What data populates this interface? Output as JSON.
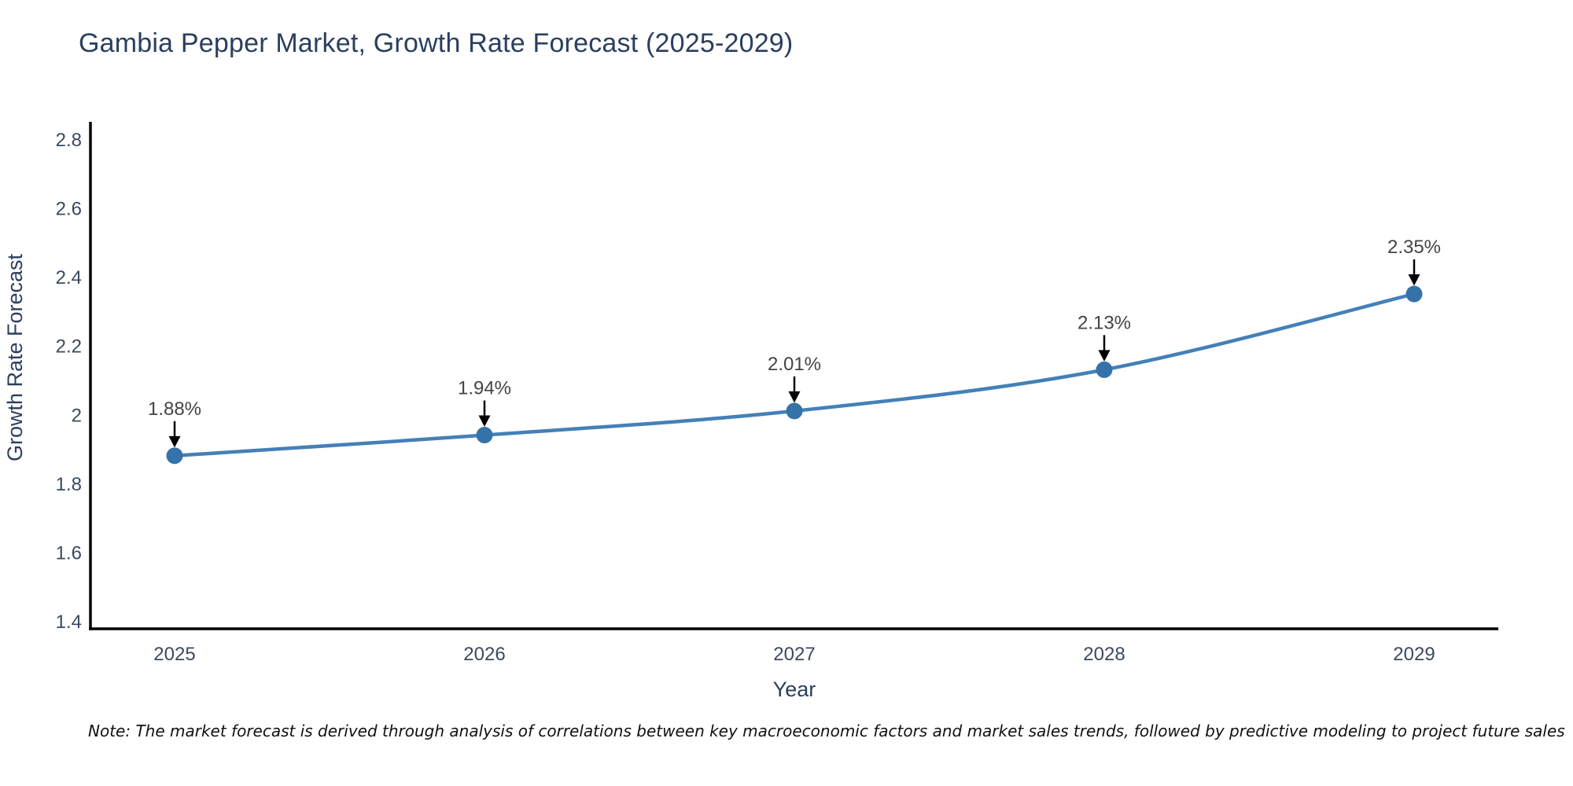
{
  "title": "Gambia Pepper Market, Growth Rate Forecast (2025-2029)",
  "note": "Note: The market forecast is derived through analysis of correlations between key macroeconomic factors and market sales trends, followed by predictive modeling to project future sales",
  "chart_data": {
    "type": "line",
    "title": "Gambia Pepper Market, Growth Rate Forecast (2025-2029)",
    "x": [
      2025,
      2026,
      2027,
      2028,
      2029
    ],
    "series": [
      {
        "name": "Growth Rate Forecast",
        "values": [
          1.88,
          1.94,
          2.01,
          2.13,
          2.35
        ]
      }
    ],
    "point_labels": [
      "1.88%",
      "1.94%",
      "2.01%",
      "2.13%",
      "2.35%"
    ],
    "xlabel": "Year",
    "ylabel": "Growth Rate Forecast",
    "ylim": [
      1.38,
      2.85
    ],
    "yticks": [
      1.4,
      1.6,
      1.8,
      2,
      2.2,
      2.4,
      2.6,
      2.8
    ],
    "grid": false,
    "legend": "none",
    "line_shape": "spline",
    "annotation_arrows": true,
    "colors": {
      "line": "#4480b8",
      "marker": "#3572a9",
      "axis_line": "#000000",
      "title_text": "#2a3f5f",
      "axis_title_text": "#2a3f5f",
      "tick_text": "#3b4a5f",
      "annotation_text": "#444444",
      "arrow": "#000000",
      "background": "#ffffff"
    }
  }
}
